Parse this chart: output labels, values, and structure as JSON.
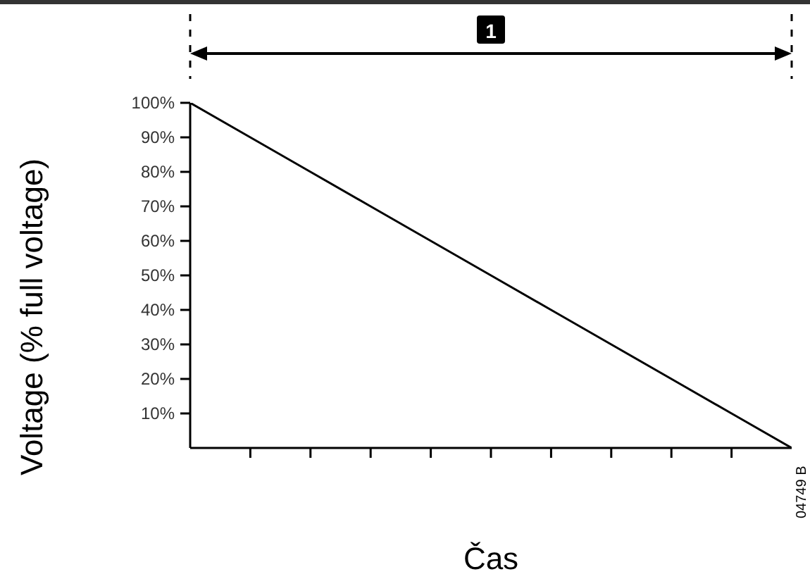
{
  "chart_data": {
    "type": "line",
    "ylabel": "Voltage (% full voltage)",
    "xlabel": "Čas",
    "annotations": [
      "1",
      "04749 B"
    ],
    "categories": [
      null,
      null,
      null,
      null,
      null,
      null,
      null,
      null,
      null,
      null,
      null
    ],
    "series": [
      {
        "color": "#000000",
        "values": [
          100,
          90,
          80,
          70,
          60,
          50,
          40,
          30,
          20,
          10,
          0
        ]
      }
    ],
    "ylim": [
      0,
      100
    ],
    "yticks": [
      {
        "value": 10,
        "label": "10%"
      },
      {
        "value": 20,
        "label": "20%"
      },
      {
        "value": 30,
        "label": "30%"
      },
      {
        "value": 40,
        "label": "40%"
      },
      {
        "value": 50,
        "label": "50%"
      },
      {
        "value": 60,
        "label": "60%"
      },
      {
        "value": 70,
        "label": "70%"
      },
      {
        "value": 80,
        "label": "80%"
      },
      {
        "value": 90,
        "label": "90%"
      },
      {
        "value": 100,
        "label": "100%"
      }
    ],
    "tick_labels": "y",
    "grid": false,
    "legend": false,
    "marker": "none",
    "line_style": "solid"
  }
}
